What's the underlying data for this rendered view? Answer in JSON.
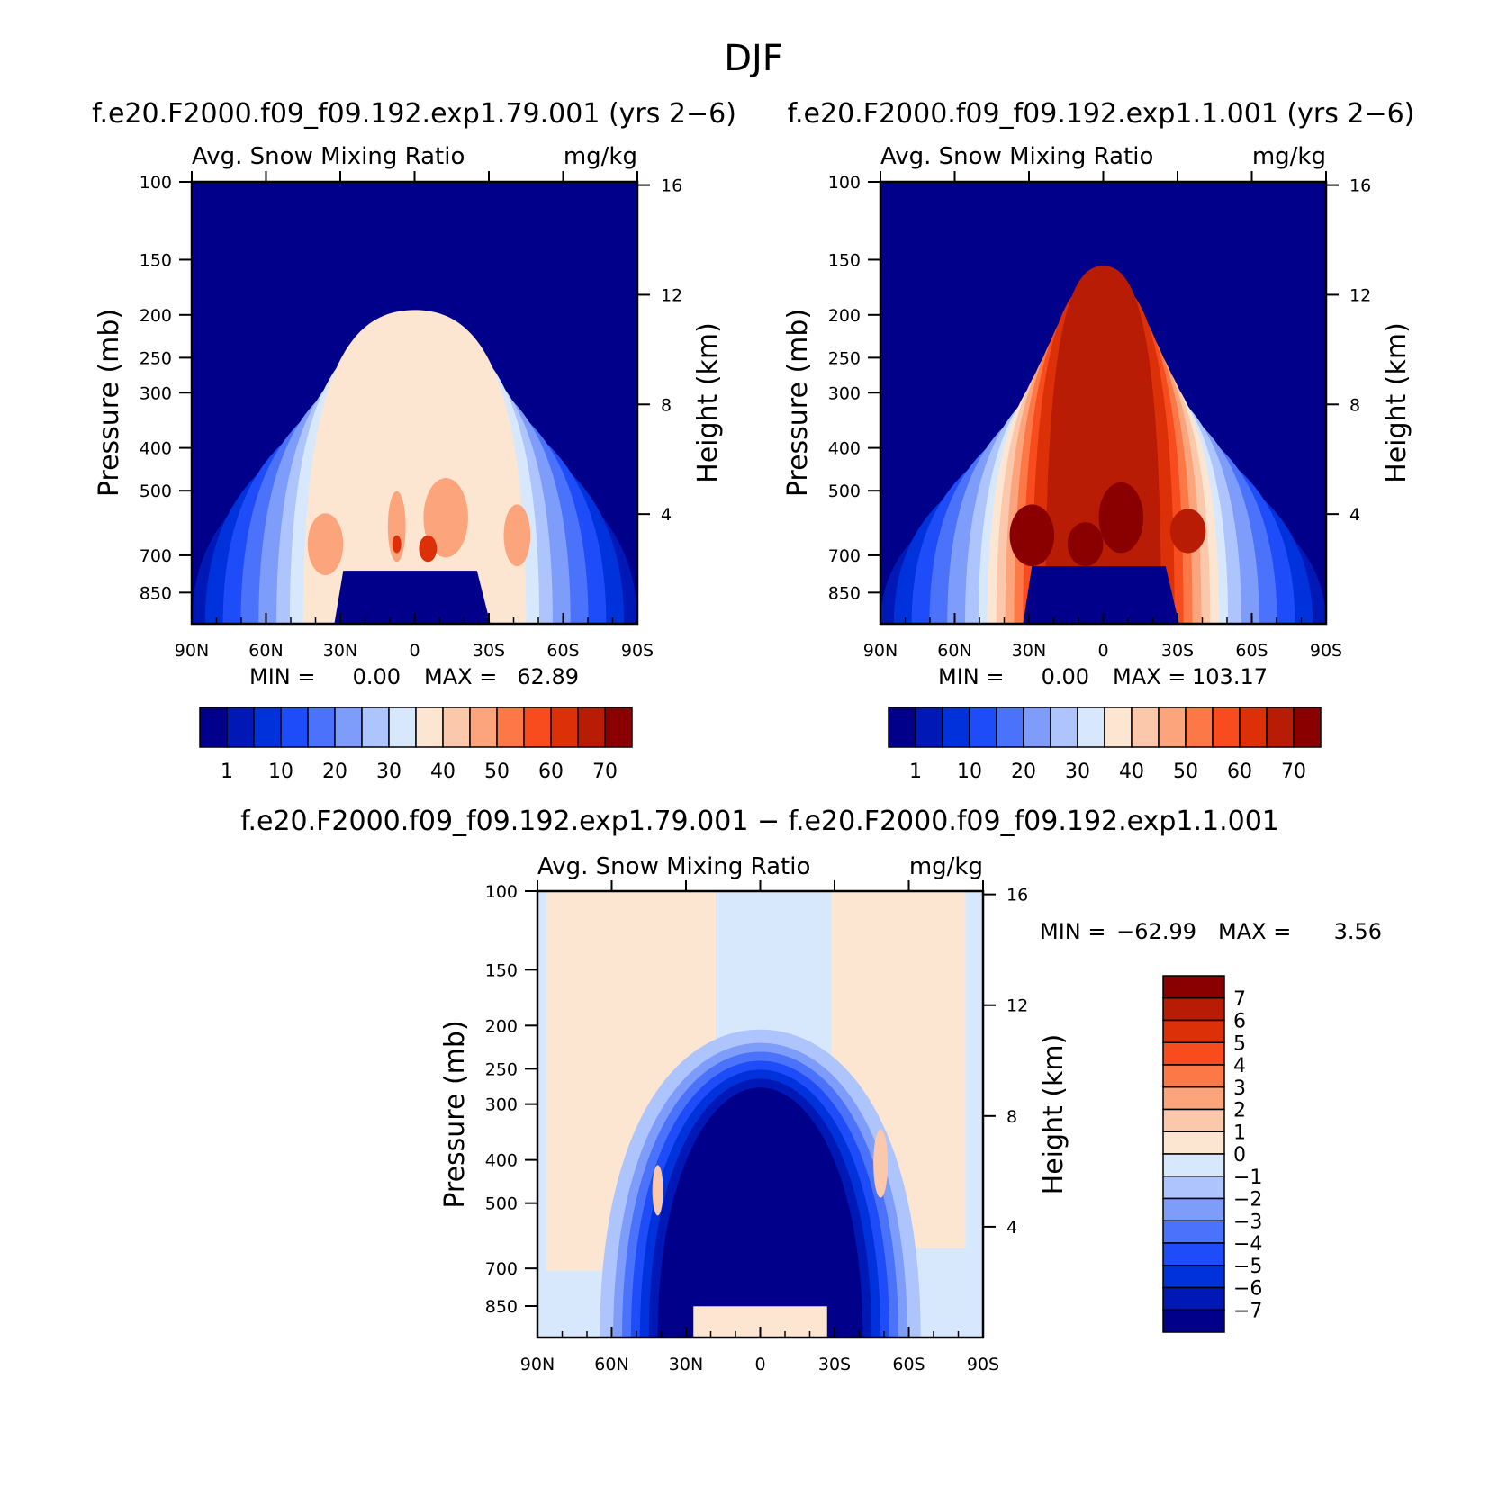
{
  "figure": {
    "title": "DJF"
  },
  "colors": {
    "levels": [
      "#00008a",
      "#0018b6",
      "#0032dc",
      "#1e4cf8",
      "#4a72fa",
      "#7e9cfa",
      "#aec4fc",
      "#d8e8fc",
      "#fce6d2",
      "#fcc8ac",
      "#fca47c",
      "#fc7846",
      "#f84c1e",
      "#dc3008",
      "#b81c04",
      "#8a0000"
    ],
    "diff_levels": [
      "#00008a",
      "#0018b6",
      "#0032dc",
      "#1e4cf8",
      "#4a72fa",
      "#7e9cfa",
      "#aec4fc",
      "#d8e8fc",
      "#fce6d2",
      "#fcc8ac",
      "#fca47c",
      "#fc7846",
      "#f84c1e",
      "#dc3008",
      "#b81c04",
      "#8a0000"
    ]
  },
  "chart_data": [
    {
      "type": "contour",
      "panel": "top-left",
      "title": "f.e20.F2000.f09_f09.192.exp1.79.001 (yrs 2−6)",
      "left_label": "Avg. Snow Mixing Ratio",
      "right_label": "mg/kg",
      "ylabel": "Pressure (mb)",
      "ylabel_right": "Height (km)",
      "x_ticks": [
        "90N",
        "60N",
        "30N",
        "0",
        "30S",
        "60S",
        "90S"
      ],
      "x_values": [
        90,
        60,
        30,
        0,
        -30,
        -60,
        -90
      ],
      "y_ticks": [
        "100",
        "150",
        "200",
        "250",
        "300",
        "400",
        "500",
        "700",
        "850"
      ],
      "y_values": [
        100,
        150,
        200,
        250,
        300,
        400,
        500,
        700,
        850
      ],
      "ylim": [
        100,
        1000
      ],
      "height_ticks": [
        "16",
        "12",
        "8",
        "4"
      ],
      "height_values": [
        16,
        12,
        8,
        4
      ],
      "stats": {
        "min_label": "MIN =",
        "min_value": "0.00",
        "max_label": "MAX =",
        "max_value": "62.89"
      },
      "colorbar_labels": [
        "1",
        "10",
        "20",
        "30",
        "40",
        "50",
        "60",
        "70"
      ],
      "colorbar_levels": [
        0,
        1,
        5,
        10,
        15,
        20,
        25,
        30,
        35,
        40,
        45,
        50,
        55,
        60,
        65,
        70
      ]
    },
    {
      "type": "contour",
      "panel": "top-right",
      "title": "f.e20.F2000.f09_f09.192.exp1.1.001 (yrs 2−6)",
      "left_label": "Avg. Snow Mixing Ratio",
      "right_label": "mg/kg",
      "ylabel": "Pressure (mb)",
      "ylabel_right": "Height (km)",
      "x_ticks": [
        "90N",
        "60N",
        "30N",
        "0",
        "30S",
        "60S",
        "90S"
      ],
      "x_values": [
        90,
        60,
        30,
        0,
        -30,
        -60,
        -90
      ],
      "y_ticks": [
        "100",
        "150",
        "200",
        "250",
        "300",
        "400",
        "500",
        "700",
        "850"
      ],
      "y_values": [
        100,
        150,
        200,
        250,
        300,
        400,
        500,
        700,
        850
      ],
      "ylim": [
        100,
        1000
      ],
      "height_ticks": [
        "16",
        "12",
        "8",
        "4"
      ],
      "height_values": [
        16,
        12,
        8,
        4
      ],
      "stats": {
        "min_label": "MIN =",
        "min_value": "0.00",
        "max_label": "MAX =",
        "max_value": "103.17"
      },
      "colorbar_labels": [
        "1",
        "10",
        "20",
        "30",
        "40",
        "50",
        "60",
        "70"
      ],
      "colorbar_levels": [
        0,
        1,
        5,
        10,
        15,
        20,
        25,
        30,
        35,
        40,
        45,
        50,
        55,
        60,
        65,
        70
      ]
    },
    {
      "type": "contour",
      "panel": "bottom",
      "title": "f.e20.F2000.f09_f09.192.exp1.79.001 − f.e20.F2000.f09_f09.192.exp1.1.001",
      "left_label": "Avg. Snow Mixing Ratio",
      "right_label": "mg/kg",
      "ylabel": "Pressure (mb)",
      "ylabel_right": "Height (km)",
      "x_ticks": [
        "90N",
        "60N",
        "30N",
        "0",
        "30S",
        "60S",
        "90S"
      ],
      "x_values": [
        90,
        60,
        30,
        0,
        -30,
        -60,
        -90
      ],
      "y_ticks": [
        "100",
        "150",
        "200",
        "250",
        "300",
        "400",
        "500",
        "700",
        "850"
      ],
      "y_values": [
        100,
        150,
        200,
        250,
        300,
        400,
        500,
        700,
        850
      ],
      "ylim": [
        100,
        1000
      ],
      "height_ticks": [
        "16",
        "12",
        "8",
        "4"
      ],
      "height_values": [
        16,
        12,
        8,
        4
      ],
      "stats": {
        "min_label": "MIN =",
        "min_value": "−62.99",
        "max_label": "MAX =",
        "max_value": "3.56"
      },
      "colorbar_labels": [
        "7",
        "6",
        "5",
        "4",
        "3",
        "2",
        "1",
        "0",
        "−1",
        "−2",
        "−3",
        "−4",
        "−5",
        "−6",
        "−7"
      ],
      "colorbar_levels": [
        7,
        6,
        5,
        4,
        3,
        2,
        1,
        0,
        -1,
        -2,
        -3,
        -4,
        -5,
        -6,
        -7
      ]
    }
  ]
}
